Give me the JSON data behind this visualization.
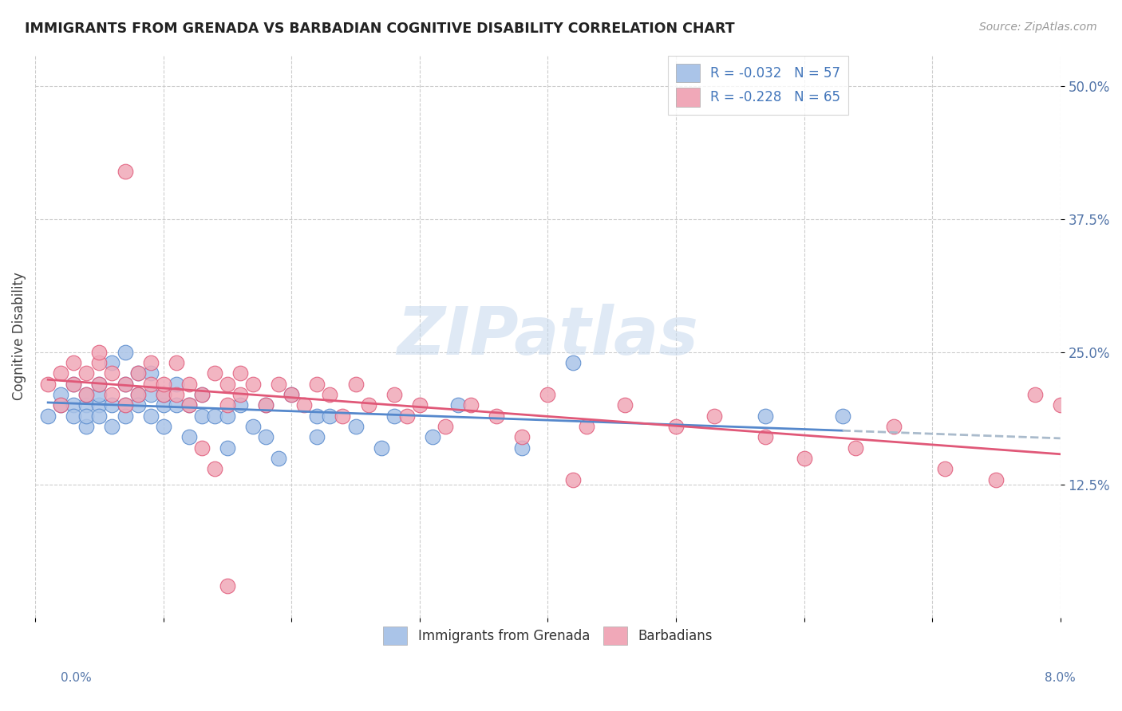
{
  "title": "IMMIGRANTS FROM GRENADA VS BARBADIAN COGNITIVE DISABILITY CORRELATION CHART",
  "source": "Source: ZipAtlas.com",
  "ylabel": "Cognitive Disability",
  "ytick_labels": [
    "12.5%",
    "25.0%",
    "37.5%",
    "50.0%"
  ],
  "ytick_values": [
    0.125,
    0.25,
    0.375,
    0.5
  ],
  "xlim": [
    0.0,
    0.08
  ],
  "ylim": [
    0.0,
    0.53
  ],
  "color_blue": "#aac4e8",
  "color_pink": "#f0a8b8",
  "line_blue": "#5588cc",
  "line_pink": "#e05878",
  "line_dashed_color": "#aabbcc",
  "watermark": "ZIPatlas",
  "legend_label1": "Immigrants from Grenada",
  "legend_label2": "Barbadians",
  "blue_scatter_x": [
    0.001,
    0.002,
    0.002,
    0.003,
    0.003,
    0.003,
    0.004,
    0.004,
    0.004,
    0.004,
    0.005,
    0.005,
    0.005,
    0.005,
    0.006,
    0.006,
    0.006,
    0.007,
    0.007,
    0.007,
    0.007,
    0.008,
    0.008,
    0.008,
    0.009,
    0.009,
    0.009,
    0.01,
    0.01,
    0.01,
    0.011,
    0.011,
    0.012,
    0.012,
    0.013,
    0.013,
    0.014,
    0.015,
    0.015,
    0.016,
    0.017,
    0.018,
    0.018,
    0.019,
    0.02,
    0.022,
    0.022,
    0.023,
    0.025,
    0.027,
    0.028,
    0.031,
    0.033,
    0.038,
    0.042,
    0.057,
    0.063
  ],
  "blue_scatter_y": [
    0.19,
    0.2,
    0.21,
    0.2,
    0.19,
    0.22,
    0.18,
    0.2,
    0.21,
    0.19,
    0.2,
    0.21,
    0.19,
    0.22,
    0.24,
    0.2,
    0.18,
    0.25,
    0.2,
    0.22,
    0.19,
    0.21,
    0.23,
    0.2,
    0.19,
    0.21,
    0.23,
    0.2,
    0.18,
    0.21,
    0.2,
    0.22,
    0.17,
    0.2,
    0.19,
    0.21,
    0.19,
    0.16,
    0.19,
    0.2,
    0.18,
    0.17,
    0.2,
    0.15,
    0.21,
    0.19,
    0.17,
    0.19,
    0.18,
    0.16,
    0.19,
    0.17,
    0.2,
    0.16,
    0.24,
    0.19,
    0.19
  ],
  "pink_scatter_x": [
    0.001,
    0.002,
    0.002,
    0.003,
    0.003,
    0.004,
    0.004,
    0.005,
    0.005,
    0.005,
    0.006,
    0.006,
    0.007,
    0.007,
    0.007,
    0.008,
    0.008,
    0.009,
    0.009,
    0.01,
    0.01,
    0.011,
    0.011,
    0.012,
    0.012,
    0.013,
    0.014,
    0.015,
    0.015,
    0.016,
    0.016,
    0.017,
    0.018,
    0.019,
    0.02,
    0.021,
    0.022,
    0.023,
    0.024,
    0.025,
    0.026,
    0.028,
    0.029,
    0.03,
    0.032,
    0.034,
    0.036,
    0.038,
    0.04,
    0.043,
    0.046,
    0.05,
    0.053,
    0.057,
    0.06,
    0.064,
    0.067,
    0.071,
    0.075,
    0.078,
    0.042,
    0.013,
    0.014,
    0.015,
    0.08
  ],
  "pink_scatter_y": [
    0.22,
    0.2,
    0.23,
    0.22,
    0.24,
    0.21,
    0.23,
    0.22,
    0.24,
    0.25,
    0.21,
    0.23,
    0.22,
    0.42,
    0.2,
    0.23,
    0.21,
    0.22,
    0.24,
    0.21,
    0.22,
    0.21,
    0.24,
    0.22,
    0.2,
    0.21,
    0.23,
    0.22,
    0.2,
    0.21,
    0.23,
    0.22,
    0.2,
    0.22,
    0.21,
    0.2,
    0.22,
    0.21,
    0.19,
    0.22,
    0.2,
    0.21,
    0.19,
    0.2,
    0.18,
    0.2,
    0.19,
    0.17,
    0.21,
    0.18,
    0.2,
    0.18,
    0.19,
    0.17,
    0.15,
    0.16,
    0.18,
    0.14,
    0.13,
    0.21,
    0.13,
    0.16,
    0.14,
    0.03,
    0.2
  ],
  "blue_R": -0.032,
  "blue_N": 57,
  "pink_R": -0.228,
  "pink_N": 65
}
